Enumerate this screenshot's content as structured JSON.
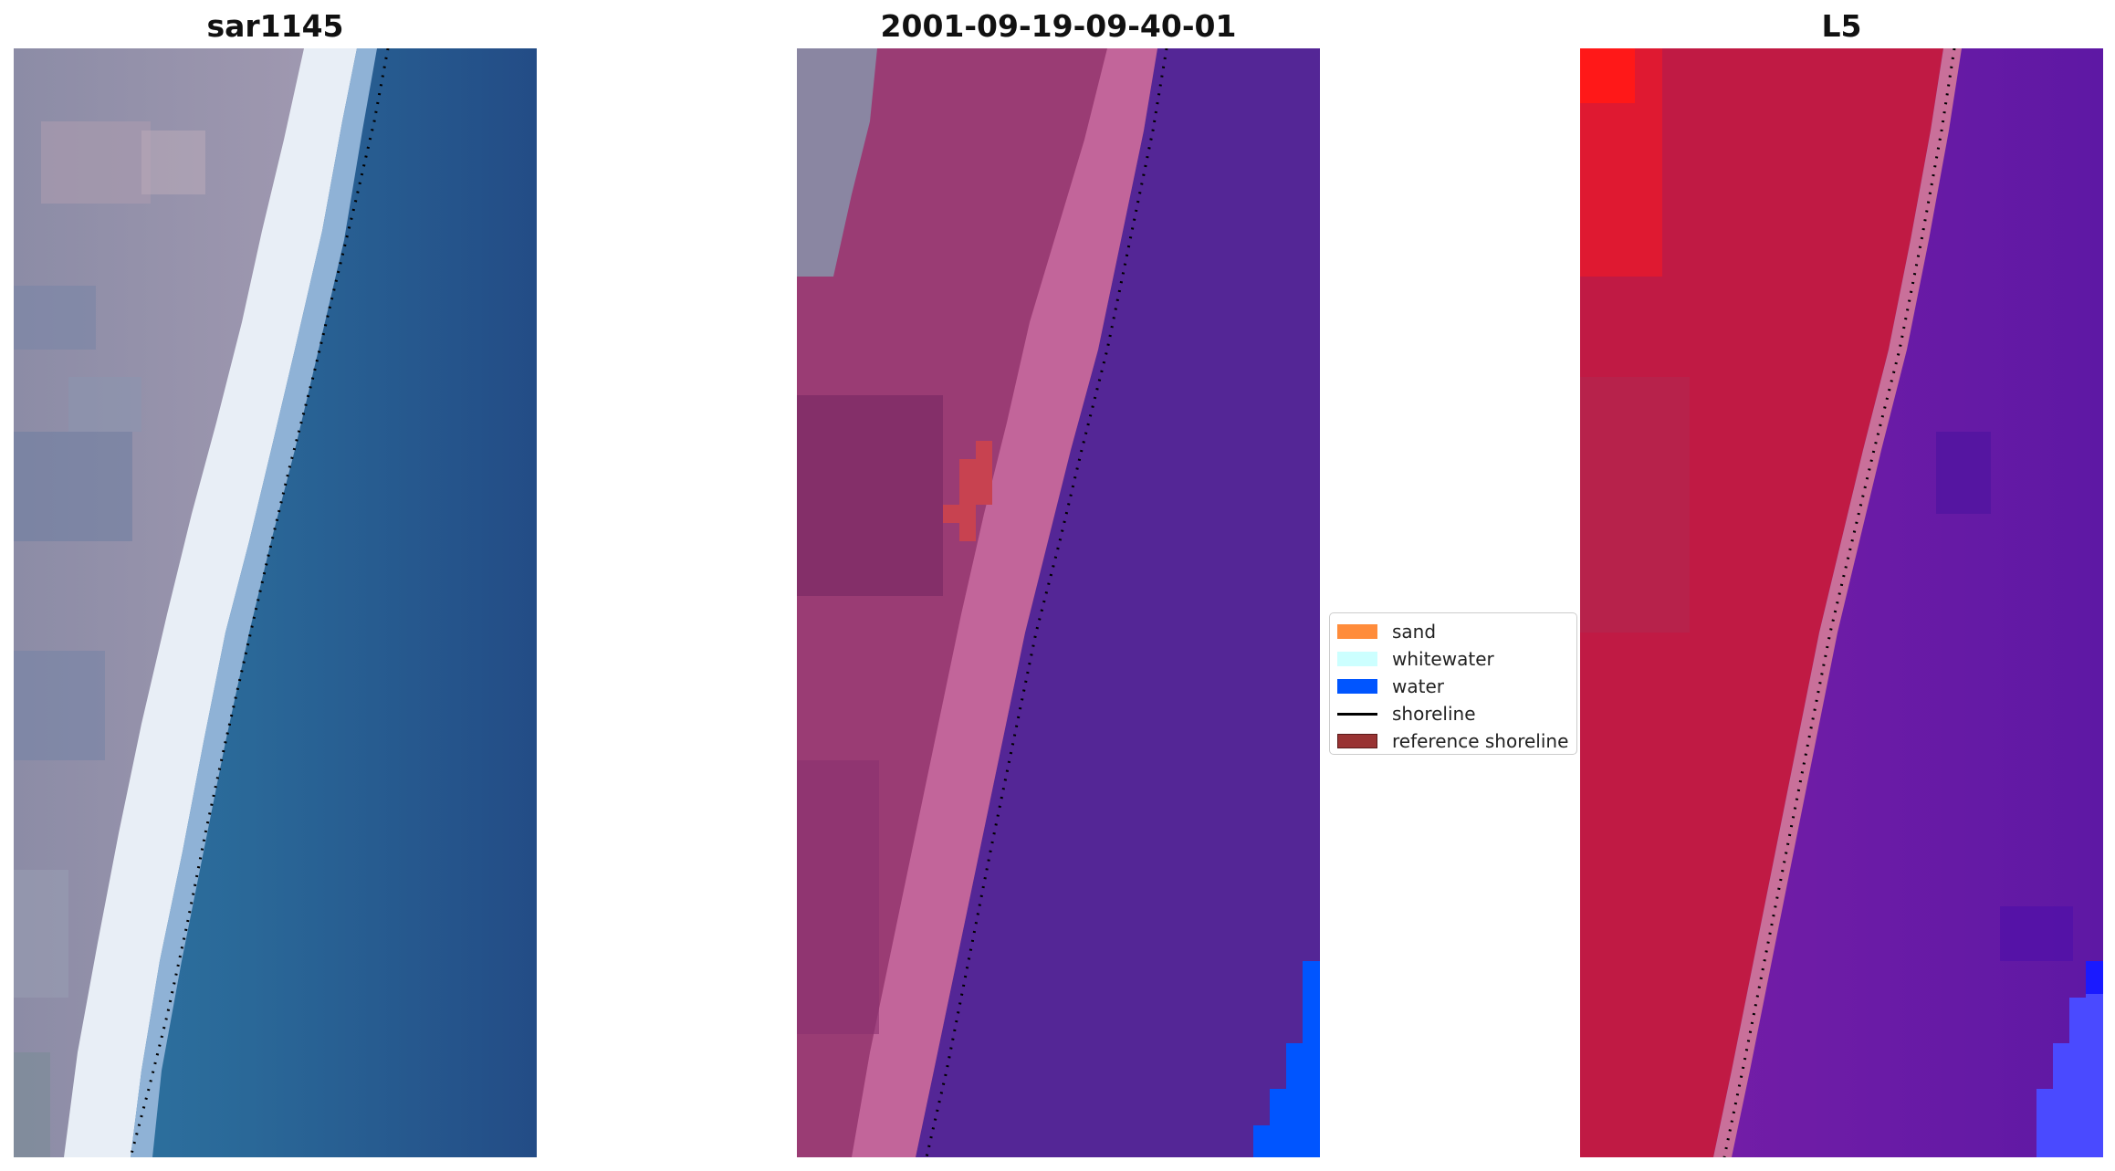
{
  "panels": [
    {
      "title": "sar1145",
      "view": "rgb-image"
    },
    {
      "title": "2001-09-19-09-40-01",
      "view": "classification-overlay"
    },
    {
      "title": "L5",
      "view": "index-map"
    }
  ],
  "legend": [
    {
      "label": "sand",
      "color": "#ff8c3b",
      "kind": "patch"
    },
    {
      "label": "whitewater",
      "color": "#ccffff",
      "kind": "patch"
    },
    {
      "label": "water",
      "color": "#0055ff",
      "kind": "patch"
    },
    {
      "label": "shoreline",
      "color": "#000000",
      "kind": "line"
    },
    {
      "label": "reference shoreline",
      "color": "#993333",
      "kind": "patch"
    }
  ],
  "colors": {
    "rgb_land": "#8a8aa6",
    "rgb_whitewater": "#e6ecf4",
    "rgb_water": "#2a5e96",
    "class_land": "#a03c78",
    "class_wet": "#c46496",
    "class_water": "#542696",
    "class_water_pixel": "#0055ff",
    "class_sand_pixel": "#c84250",
    "index_land": "#be1a3e",
    "index_water": "#6a1aa6",
    "index_high": "#ff1a1a",
    "index_low": "#4a4aff"
  }
}
